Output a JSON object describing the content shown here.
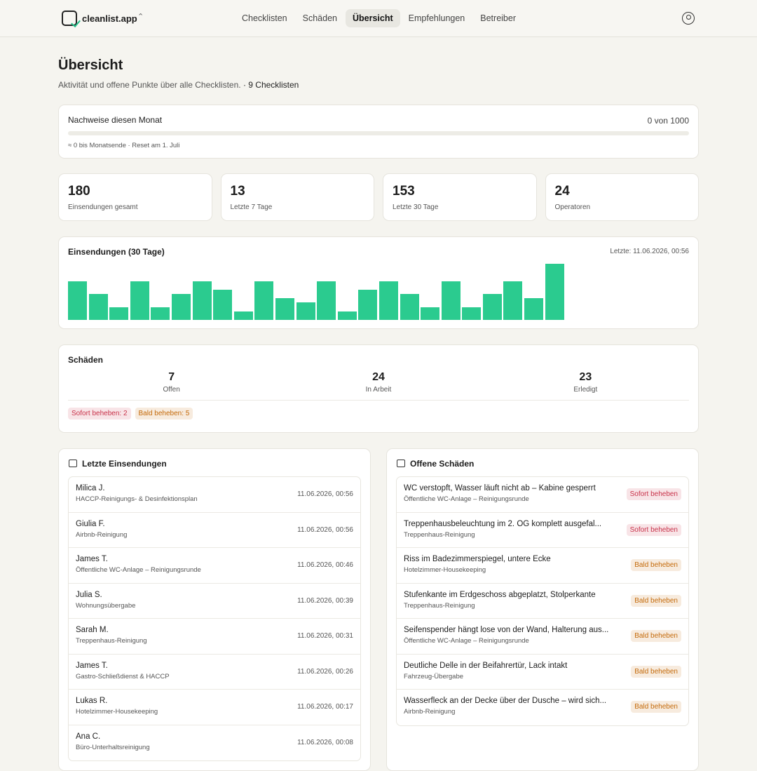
{
  "header": {
    "brand": "cleanlist.app",
    "nav": [
      "Checklisten",
      "Schäden",
      "Übersicht",
      "Empfehlungen",
      "Betreiber"
    ],
    "active": 2
  },
  "page": {
    "title": "Übersicht",
    "subtitle": "Aktivität und offene Punkte über alle Checklisten.",
    "subtitle_count": "· 9 Checklisten"
  },
  "quota": {
    "label": "Nachweise diesen Monat",
    "count": "0 von 1000",
    "note": "≈ 0 bis Monatsende · Reset am 1. Juli"
  },
  "stats": [
    {
      "value": "180",
      "label": "Einsendungen gesamt"
    },
    {
      "value": "13",
      "label": "Letzte 7 Tage"
    },
    {
      "value": "153",
      "label": "Letzte 30 Tage"
    },
    {
      "value": "24",
      "label": "Operatoren"
    }
  ],
  "chart": {
    "title": "Einsendungen (30 Tage)",
    "last": "Letzte: 11.06.2026, 00:56",
    "color": "#2bcb8f",
    "values": [
      9,
      6,
      3,
      9,
      3,
      6,
      9,
      7,
      2,
      9,
      5,
      4,
      9,
      2,
      7,
      9,
      6,
      3,
      9,
      3,
      6,
      9,
      5,
      13
    ]
  },
  "damages": {
    "title": "Schäden",
    "stats": [
      {
        "value": "7",
        "label": "Offen"
      },
      {
        "value": "24",
        "label": "In Arbeit"
      },
      {
        "value": "23",
        "label": "Erledigt"
      }
    ],
    "tags": [
      {
        "text": "Sofort beheben: 2",
        "color": "#c8324a"
      },
      {
        "text": "Bald beheben: 5",
        "color": "#c46a0a"
      }
    ]
  },
  "recent": {
    "title": "Letzte Einsendungen",
    "items": [
      {
        "name": "Milica J.",
        "checklist": "HACCP-Reinigungs- & Desinfektionsplan",
        "time": "11.06.2026, 00:56"
      },
      {
        "name": "Giulia F.",
        "checklist": "Airbnb-Reinigung",
        "time": "11.06.2026, 00:56"
      },
      {
        "name": "James T.",
        "checklist": "Öffentliche WC-Anlage – Reinigungsrunde",
        "time": "11.06.2026, 00:46"
      },
      {
        "name": "Julia S.",
        "checklist": "Wohnungsübergabe",
        "time": "11.06.2026, 00:39"
      },
      {
        "name": "Sarah M.",
        "checklist": "Treppenhaus-Reinigung",
        "time": "11.06.2026, 00:31"
      },
      {
        "name": "James T.",
        "checklist": "Gastro-Schließdienst & HACCP",
        "time": "11.06.2026, 00:26"
      },
      {
        "name": "Lukas R.",
        "checklist": "Hotelzimmer-Housekeeping",
        "time": "11.06.2026, 00:17"
      },
      {
        "name": "Ana C.",
        "checklist": "Büro-Unterhaltsreinigung",
        "time": "11.06.2026, 00:08"
      }
    ]
  },
  "open": {
    "title": "Offene Schäden",
    "items": [
      {
        "title": "WC verstopft, Wasser läuft nicht ab – Kabine gesperrt",
        "checklist": "Öffentliche WC-Anlage – Reinigungsrunde",
        "status": "Sofort beheben",
        "color": "#c8324a"
      },
      {
        "title": "Treppenhausbeleuchtung im 2. OG komplett ausgefal...",
        "checklist": "Treppenhaus-Reinigung",
        "status": "Sofort beheben",
        "color": "#c8324a"
      },
      {
        "title": "Riss im Badezimmerspiegel, untere Ecke",
        "checklist": "Hotelzimmer-Housekeeping",
        "status": "Bald beheben",
        "color": "#c46a0a"
      },
      {
        "title": "Stufenkante im Erdgeschoss abgeplatzt, Stolperkante",
        "checklist": "Treppenhaus-Reinigung",
        "status": "Bald beheben",
        "color": "#c46a0a"
      },
      {
        "title": "Seifenspender hängt lose von der Wand, Halterung aus...",
        "checklist": "Öffentliche WC-Anlage – Reinigungsrunde",
        "status": "Bald beheben",
        "color": "#c46a0a"
      },
      {
        "title": "Deutliche Delle in der Beifahrertür, Lack intakt",
        "checklist": "Fahrzeug-Übergabe",
        "status": "Bald beheben",
        "color": "#c46a0a"
      },
      {
        "title": "Wasserfleck an der Decke über der Dusche – wird sich...",
        "checklist": "Airbnb-Reinigung",
        "status": "Bald beheben",
        "color": "#c46a0a"
      }
    ]
  }
}
